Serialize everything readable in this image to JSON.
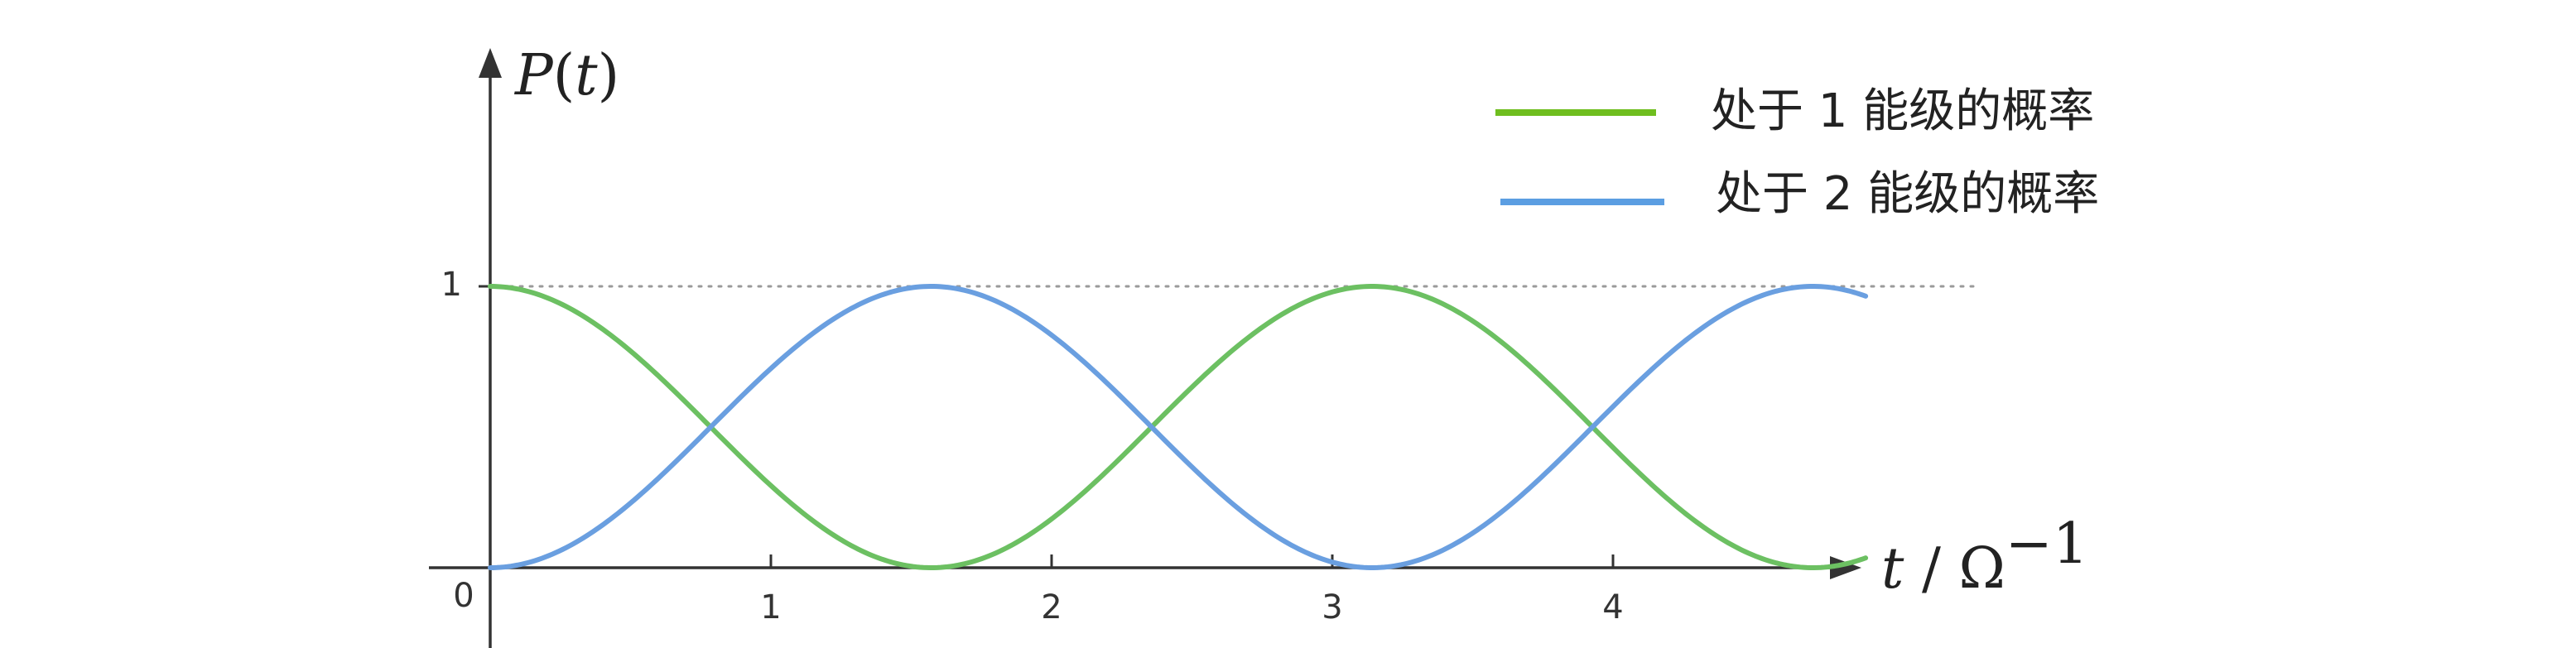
{
  "chart_data": {
    "type": "line",
    "ylabel": "P(t)",
    "ylabel_parts": {
      "var": "P",
      "open": "(",
      "arg": "t",
      "close": ")"
    },
    "xlabel": "t / Ω⁻¹",
    "xlabel_parts": {
      "var": "t",
      "sep": " / ",
      "unit": "Ω",
      "exp": "−1"
    },
    "x_ticks": [
      1,
      2,
      3,
      4
    ],
    "x_tick_labels": [
      "1",
      "2",
      "3",
      "4"
    ],
    "y_ticks": [
      1
    ],
    "y_tick_labels": [
      "1"
    ],
    "origin_label": "0",
    "xlim": [
      0,
      4.9
    ],
    "ylim": [
      0,
      1
    ],
    "reference_line": {
      "y": 1,
      "style": "dotted"
    },
    "legend_position": "top-right",
    "grid": false,
    "series": [
      {
        "name": "处于 1 能级的概率",
        "function": "cos^2(t)",
        "color": "#6cc062",
        "legend_color": "#6fbe1f",
        "x": [
          0,
          0.25,
          0.5,
          0.75,
          1.0,
          1.25,
          1.5,
          1.75,
          2.0,
          2.25,
          2.5,
          2.75,
          3.0,
          3.25,
          3.5,
          3.75,
          4.0,
          4.25,
          4.5,
          4.75,
          4.9
        ],
        "y": [
          1.0,
          0.939,
          0.77,
          0.535,
          0.292,
          0.099,
          0.005,
          0.032,
          0.173,
          0.394,
          0.642,
          0.855,
          0.98,
          0.988,
          0.877,
          0.671,
          0.427,
          0.198,
          0.046,
          0.001,
          0.034
        ]
      },
      {
        "name": "处于 2 能级的概率",
        "function": "sin^2(t)",
        "color": "#6a9fe0",
        "legend_color": "#5b9ee2",
        "x": [
          0,
          0.25,
          0.5,
          0.75,
          1.0,
          1.25,
          1.5,
          1.75,
          2.0,
          2.25,
          2.5,
          2.75,
          3.0,
          3.25,
          3.5,
          3.75,
          4.0,
          4.25,
          4.5,
          4.75,
          4.9
        ],
        "y": [
          0.0,
          0.061,
          0.23,
          0.465,
          0.708,
          0.901,
          0.995,
          0.968,
          0.827,
          0.606,
          0.358,
          0.145,
          0.02,
          0.012,
          0.123,
          0.329,
          0.573,
          0.802,
          0.954,
          0.999,
          0.966
        ]
      }
    ],
    "axis_color": "#333333",
    "reference_color": "#9a9a9a"
  }
}
